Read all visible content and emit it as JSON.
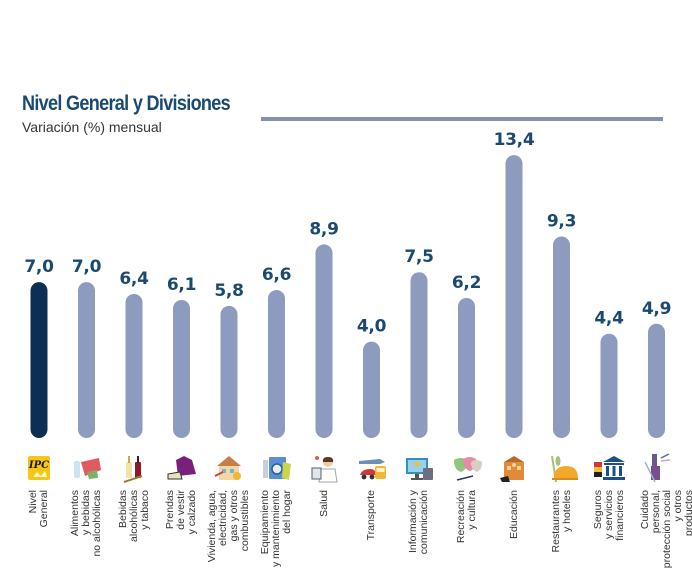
{
  "header": {
    "title": "Nivel General y Divisiones",
    "subtitle": "Variación (%) mensual"
  },
  "colors": {
    "highlight": "#0d2f55",
    "bar": "#8d9bbf",
    "label": "#1a4a72",
    "rule": "#8590b4"
  },
  "chart_data": {
    "type": "bar",
    "title": "Nivel General y Divisiones",
    "subtitle": "Variación (%) mensual",
    "xlabel": "",
    "ylabel": "Variación (%) mensual",
    "grid": false,
    "ylim": [
      0,
      14
    ],
    "categories": [
      "Nivel General",
      "Alimentos y bebidas no alcohólicas",
      "Bebidas alcohólicas y tabaco",
      "Prendas de vestir y calzado",
      "Vivienda, agua, electricidad, gas y otros combustibles",
      "Equipamiento y mantenimiento del hogar",
      "Salud",
      "Transporte",
      "Información y comunicación",
      "Recreación y cultura",
      "Educación",
      "Restaurantes y hoteles",
      "Seguros y servicios financieros",
      "Cuidado personal, protección social y otros productos"
    ],
    "category_lines": [
      "Nivel\nGeneral",
      "Alimentos\ny bebidas\nno alcohólicas",
      "Bebidas\nalcohólicas\ny tabaco",
      "Prendas\nde vestir\ny calzado",
      "Vivienda, agua,\nelectricidad,\ngas y otros\ncombustibles",
      "Equipamiento\ny mantenimiento\ndel hogar",
      "Salud",
      "Transporte",
      "Información y\ncomunicación",
      "Recreación\ny cultura",
      "Educación",
      "Restaurantes\ny hoteles",
      "Seguros\ny servicios\nfinancieros",
      "Cuidado personal,\nprotección social\ny otros productos"
    ],
    "values": [
      7.0,
      7.0,
      6.4,
      6.1,
      5.8,
      6.6,
      8.9,
      4.0,
      7.5,
      6.2,
      13.4,
      9.3,
      4.4,
      4.9
    ],
    "value_labels": [
      "7,0",
      "7,0",
      "6,4",
      "6,1",
      "5,8",
      "6,6",
      "8,9",
      "4,0",
      "7,5",
      "6,2",
      "13,4",
      "9,3",
      "4,4",
      "4,9"
    ],
    "highlighted_index": 0,
    "icons": [
      "ipc-logo-icon",
      "food-and-drink-icon",
      "wine-bottles-icon",
      "clothing-shoe-icon",
      "house-icon",
      "washing-machine-icon",
      "doctor-icon",
      "transport-vehicles-icon",
      "computer-monitor-icon",
      "theater-masks-icon",
      "school-building-icon",
      "restaurant-cloche-icon",
      "bank-icon",
      "personal-care-icon"
    ]
  }
}
